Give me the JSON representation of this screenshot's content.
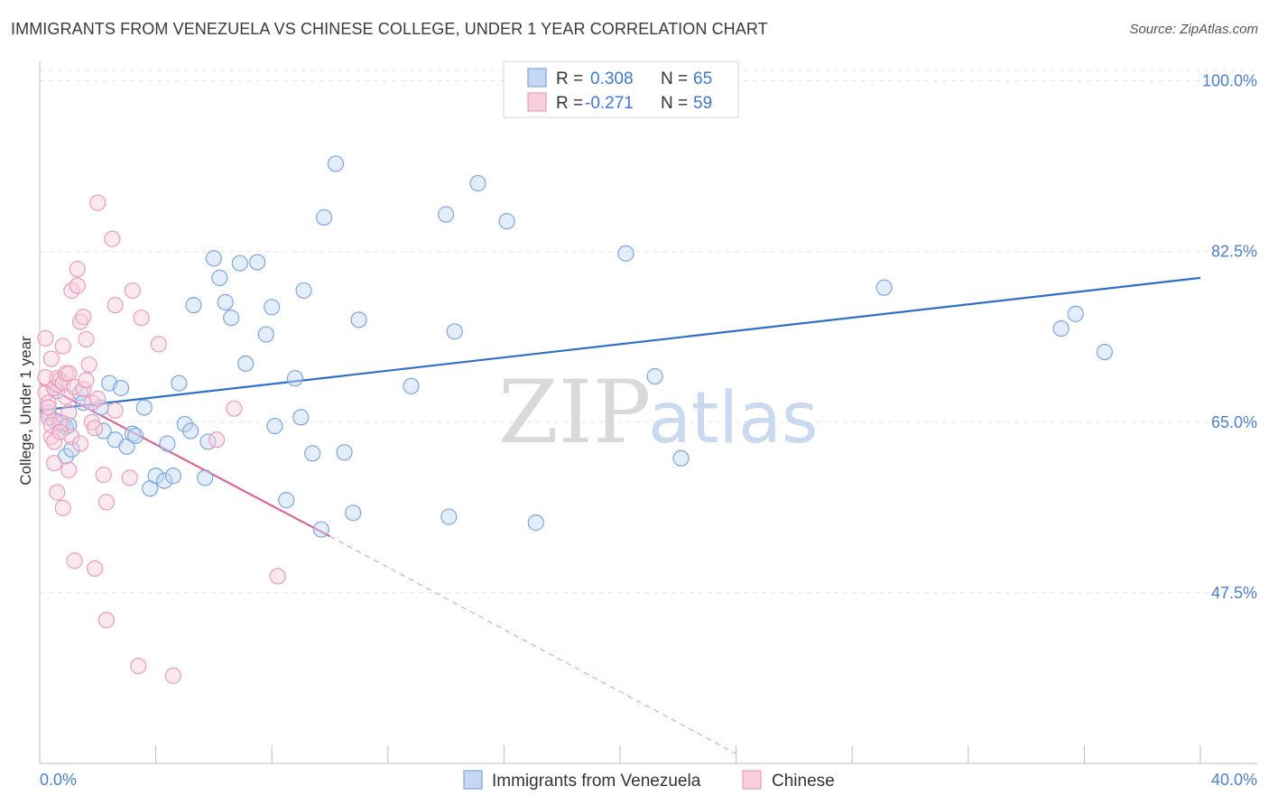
{
  "chart_data": {
    "type": "scatter",
    "title": "IMMIGRANTS FROM VENEZUELA VS CHINESE COLLEGE, UNDER 1 YEAR CORRELATION CHART",
    "source": "Source: ZipAtlas.com",
    "ylabel": "College, Under 1 year",
    "xlim": [
      0.0,
      40.0
    ],
    "ylim": [
      30.0,
      102.0
    ],
    "x_tick_labels": [
      "0.0%",
      "40.0%"
    ],
    "y_ticks": [
      47.5,
      65.0,
      82.5,
      100.0
    ],
    "y_tick_labels": [
      "47.5%",
      "65.0%",
      "82.5%",
      "100.0%"
    ],
    "watermark": {
      "zip": "ZIP",
      "atlas": "atlas"
    },
    "legend": {
      "rows": [
        {
          "r_label": "R =",
          "r_value": "0.308",
          "n_label": "N =",
          "n_value": "65"
        },
        {
          "r_label": "R =",
          "r_value": "-0.271",
          "n_label": "N =",
          "n_value": "59"
        }
      ]
    },
    "series": [
      {
        "name": "Immigrants from Venezuela",
        "color": "#7aa7e6",
        "fill": "#c4d8f3",
        "line_color": "#2f6fcc",
        "trend": {
          "x0": 0.0,
          "y0": 66.2,
          "x1": 40.0,
          "y1": 79.8
        },
        "points": [
          [
            0.3,
            66.0
          ],
          [
            0.5,
            65.2
          ],
          [
            0.6,
            68.2
          ],
          [
            0.8,
            64.9
          ],
          [
            0.9,
            64.5
          ],
          [
            0.9,
            61.5
          ],
          [
            1.0,
            64.7
          ],
          [
            1.1,
            62.2
          ],
          [
            1.4,
            68.0
          ],
          [
            1.5,
            67.0
          ],
          [
            2.1,
            66.5
          ],
          [
            2.2,
            64.1
          ],
          [
            2.4,
            69.0
          ],
          [
            2.6,
            63.2
          ],
          [
            2.8,
            68.5
          ],
          [
            3.0,
            62.5
          ],
          [
            3.2,
            63.8
          ],
          [
            3.3,
            63.6
          ],
          [
            3.6,
            66.5
          ],
          [
            3.8,
            58.2
          ],
          [
            4.0,
            59.5
          ],
          [
            4.3,
            59.0
          ],
          [
            4.4,
            62.8
          ],
          [
            4.6,
            59.5
          ],
          [
            4.8,
            69.0
          ],
          [
            5.0,
            64.8
          ],
          [
            5.2,
            64.1
          ],
          [
            5.3,
            77.0
          ],
          [
            5.7,
            59.3
          ],
          [
            5.8,
            63.0
          ],
          [
            6.0,
            81.8
          ],
          [
            6.2,
            79.8
          ],
          [
            6.4,
            77.3
          ],
          [
            6.6,
            75.7
          ],
          [
            6.9,
            81.3
          ],
          [
            7.1,
            71.0
          ],
          [
            7.5,
            81.4
          ],
          [
            7.8,
            74.0
          ],
          [
            8.0,
            76.8
          ],
          [
            8.1,
            64.6
          ],
          [
            8.5,
            57.0
          ],
          [
            8.8,
            69.5
          ],
          [
            9.0,
            65.5
          ],
          [
            9.1,
            78.5
          ],
          [
            9.4,
            61.8
          ],
          [
            9.7,
            54.0
          ],
          [
            9.8,
            86.0
          ],
          [
            10.2,
            91.5
          ],
          [
            10.5,
            61.9
          ],
          [
            10.8,
            55.7
          ],
          [
            11.0,
            75.5
          ],
          [
            12.8,
            68.7
          ],
          [
            14.0,
            86.3
          ],
          [
            14.1,
            55.3
          ],
          [
            14.3,
            74.3
          ],
          [
            15.1,
            89.5
          ],
          [
            16.1,
            85.6
          ],
          [
            17.1,
            54.7
          ],
          [
            20.2,
            82.3
          ],
          [
            21.2,
            69.7
          ],
          [
            22.1,
            61.3
          ],
          [
            29.1,
            78.8
          ],
          [
            35.2,
            74.6
          ],
          [
            35.7,
            76.1
          ],
          [
            36.7,
            72.2
          ]
        ]
      },
      {
        "name": "Chinese",
        "color": "#ef9bb8",
        "fill": "#f8cfdc",
        "line_color": "#e0659a",
        "trend": {
          "x0": 0.0,
          "y0": 69.0,
          "x1": 10.0,
          "y1": 53.3
        },
        "trend_dashed_to": {
          "x": 24.0,
          "y": 31.0
        },
        "points": [
          [
            0.2,
            73.6
          ],
          [
            0.2,
            69.6
          ],
          [
            0.2,
            68.0
          ],
          [
            0.3,
            67.0
          ],
          [
            0.3,
            65.5
          ],
          [
            0.3,
            66.5
          ],
          [
            0.4,
            71.5
          ],
          [
            0.4,
            63.5
          ],
          [
            0.4,
            64.7
          ],
          [
            0.5,
            68.5
          ],
          [
            0.5,
            63.0
          ],
          [
            0.5,
            60.8
          ],
          [
            0.6,
            57.8
          ],
          [
            0.6,
            69.5
          ],
          [
            0.7,
            69.3
          ],
          [
            0.7,
            65.0
          ],
          [
            0.7,
            64.0
          ],
          [
            0.8,
            72.8
          ],
          [
            0.8,
            56.2
          ],
          [
            0.8,
            69.0
          ],
          [
            0.9,
            70.0
          ],
          [
            0.9,
            67.6
          ],
          [
            1.0,
            70.0
          ],
          [
            1.0,
            66.0
          ],
          [
            1.0,
            60.1
          ],
          [
            1.1,
            78.5
          ],
          [
            1.1,
            63.5
          ],
          [
            1.2,
            68.6
          ],
          [
            1.2,
            50.8
          ],
          [
            1.3,
            80.7
          ],
          [
            1.3,
            79.0
          ],
          [
            1.4,
            75.3
          ],
          [
            1.4,
            62.8
          ],
          [
            1.5,
            75.8
          ],
          [
            1.5,
            68.4
          ],
          [
            1.6,
            73.5
          ],
          [
            1.6,
            69.3
          ],
          [
            1.7,
            70.9
          ],
          [
            1.8,
            67.0
          ],
          [
            1.8,
            65.0
          ],
          [
            1.9,
            50.0
          ],
          [
            1.9,
            64.4
          ],
          [
            2.0,
            87.5
          ],
          [
            2.0,
            67.4
          ],
          [
            2.2,
            59.6
          ],
          [
            2.3,
            56.8
          ],
          [
            2.3,
            44.7
          ],
          [
            2.5,
            83.8
          ],
          [
            2.6,
            66.2
          ],
          [
            2.6,
            77.0
          ],
          [
            3.1,
            59.3
          ],
          [
            3.2,
            78.5
          ],
          [
            3.4,
            40.0
          ],
          [
            3.5,
            75.7
          ],
          [
            4.1,
            73.0
          ],
          [
            4.6,
            39.0
          ],
          [
            6.1,
            63.2
          ],
          [
            6.7,
            66.4
          ],
          [
            8.2,
            49.2
          ]
        ]
      }
    ]
  },
  "bottom_legend": [
    "Immigrants from Venezuela",
    "Chinese"
  ]
}
